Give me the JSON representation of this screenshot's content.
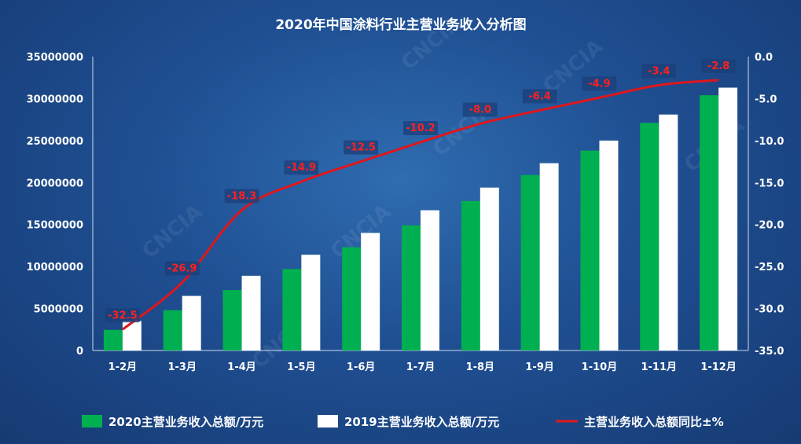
{
  "chart_data": {
    "type": "bar",
    "title": "2020年中国涂料行业主营业务收入分析图",
    "categories": [
      "1-2月",
      "1-3月",
      "1-4月",
      "1-5月",
      "1-6月",
      "1-7月",
      "1-8月",
      "1-9月",
      "1-10月",
      "1-11月",
      "1-12月"
    ],
    "series": [
      {
        "name": "2020主营业务收入总额/万元",
        "type": "bar",
        "axis": "left",
        "color": "#00b050",
        "values": [
          2450000,
          4800000,
          7200000,
          9700000,
          12300000,
          14900000,
          17800000,
          20900000,
          23800000,
          27100000,
          30400000
        ]
      },
      {
        "name": "2019主营业务收入总额/万元",
        "type": "bar",
        "axis": "left",
        "color": "#ffffff",
        "values": [
          3500000,
          6500000,
          8900000,
          11400000,
          14000000,
          16700000,
          19400000,
          22300000,
          25000000,
          28100000,
          31300000
        ]
      },
      {
        "name": "主营业务收入总额同比±%",
        "type": "line",
        "axis": "right",
        "color": "#e0161b",
        "values": [
          -32.5,
          -26.9,
          -18.3,
          -14.9,
          -12.5,
          -10.2,
          -8.0,
          -6.4,
          -4.9,
          -3.4,
          -2.8
        ],
        "labels": [
          "-32.5",
          "-26.9",
          "-18.3",
          "-14.9",
          "-12.5",
          "-10.2",
          "-8.0",
          "-6.4",
          "-4.9",
          "-3.4",
          "-2.8"
        ]
      }
    ],
    "y_left": {
      "min": 0,
      "max": 35000000,
      "ticks": [
        0,
        5000000,
        10000000,
        15000000,
        20000000,
        25000000,
        30000000,
        35000000
      ]
    },
    "y_right": {
      "min": -35,
      "max": 0,
      "ticks": [
        "-35.0",
        "-30.0",
        "-25.0",
        "-20.0",
        "-15.0",
        "-10.0",
        "-5.0",
        "0.0"
      ]
    },
    "watermark": "CNCIA",
    "legend_position": "bottom",
    "grid": false
  }
}
